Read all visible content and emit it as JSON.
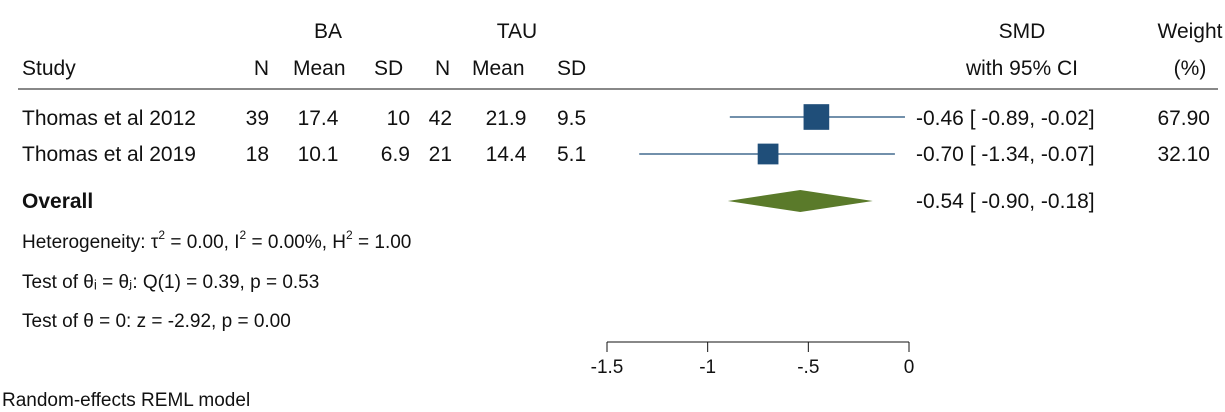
{
  "header": {
    "group1": "BA",
    "group2": "TAU",
    "study": "Study",
    "n1": "N",
    "mean1": "Mean",
    "sd1": "SD",
    "n2": "N",
    "mean2": "Mean",
    "sd2": "SD",
    "smd": "SMD",
    "smd_ci": "with 95% CI",
    "weight": "Weight",
    "weight_unit": "(%)"
  },
  "colors": {
    "study_marker": "#1f4e79",
    "overall_diamond": "#5a7a2a",
    "axis": "#111111"
  },
  "chart_data": {
    "type": "forest",
    "xlim": [
      -1.5,
      0
    ],
    "x_ticks": [
      -1.5,
      -1,
      -0.5,
      0
    ],
    "x_tick_labels": [
      "-1.5",
      "-1",
      "-.5",
      "0"
    ],
    "studies": [
      {
        "name": "Thomas et al 2012",
        "n1": "39",
        "mean1": "17.4",
        "sd1": "10",
        "n2": "42",
        "mean2": "21.9",
        "sd2": "9.5",
        "smd": -0.46,
        "ci_low": -0.89,
        "ci_high": -0.02,
        "ci_text": "-0.46 [ -0.89,  -0.02]",
        "weight": 67.9,
        "weight_text": "67.90"
      },
      {
        "name": "Thomas et al 2019",
        "n1": "18",
        "mean1": "10.1",
        "sd1": "6.9",
        "n2": "21",
        "mean2": "14.4",
        "sd2": "5.1",
        "smd": -0.7,
        "ci_low": -1.34,
        "ci_high": -0.07,
        "ci_text": "-0.70 [ -1.34,  -0.07]",
        "weight": 32.1,
        "weight_text": "32.10"
      }
    ],
    "overall": {
      "label": "Overall",
      "smd": -0.54,
      "ci_low": -0.9,
      "ci_high": -0.18,
      "ci_text": "-0.54 [ -0.90,  -0.18]"
    },
    "heterogeneity": {
      "prefix": "Heterogeneity: τ",
      "tau2_rest": " = 0.00, I",
      "i2_rest": " = 0.00%, H",
      "h2_rest": " = 1.00",
      "sup": "2"
    },
    "test_homogeneity": "Test of θᵢ = θⱼ: Q(1) = 0.39, p = 0.53",
    "test_effect": "Test of θ = 0: z = -2.92, p = 0.00",
    "model_note": "Random-effects REML model"
  }
}
